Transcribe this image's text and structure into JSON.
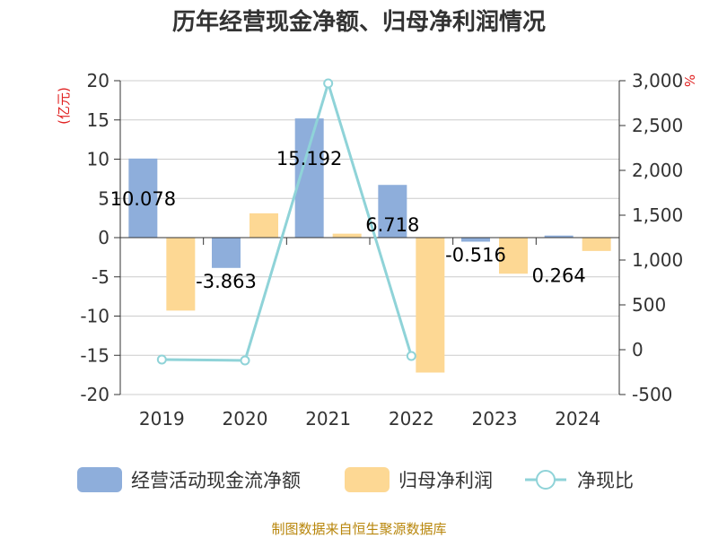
{
  "chart_data": {
    "type": "bar",
    "title": "历年经营现金净额、归母净利润情况",
    "categories": [
      "2019",
      "2020",
      "2021",
      "2022",
      "2023",
      "2024"
    ],
    "y_left": {
      "unit": "(亿元)",
      "min": -20,
      "max": 20,
      "step": 5
    },
    "y_right": {
      "unit": "%",
      "min": -500,
      "max": 3000,
      "step": 500
    },
    "series": [
      {
        "name": "经营活动现金流净额",
        "type": "bar",
        "axis": "left",
        "color": "#8eaedb",
        "values": [
          10.078,
          -3.863,
          15.192,
          6.718,
          -0.516,
          0.264
        ],
        "labels": [
          "10.078",
          "-3.863",
          "15.192",
          "6.718",
          "-0.516",
          "0.264"
        ]
      },
      {
        "name": "归母净利润",
        "type": "bar",
        "axis": "left",
        "color": "#fdd894",
        "values": [
          -9.3,
          3.1,
          0.5,
          -17.2,
          -4.6,
          -1.7
        ]
      },
      {
        "name": "净现比",
        "type": "line",
        "axis": "right",
        "color": "#8fd3d8",
        "values": [
          -110,
          -120,
          2970,
          -70,
          null,
          null
        ]
      }
    ],
    "legend_position": "bottom",
    "grid": true,
    "source": "制图数据来自恒生聚源数据库"
  }
}
